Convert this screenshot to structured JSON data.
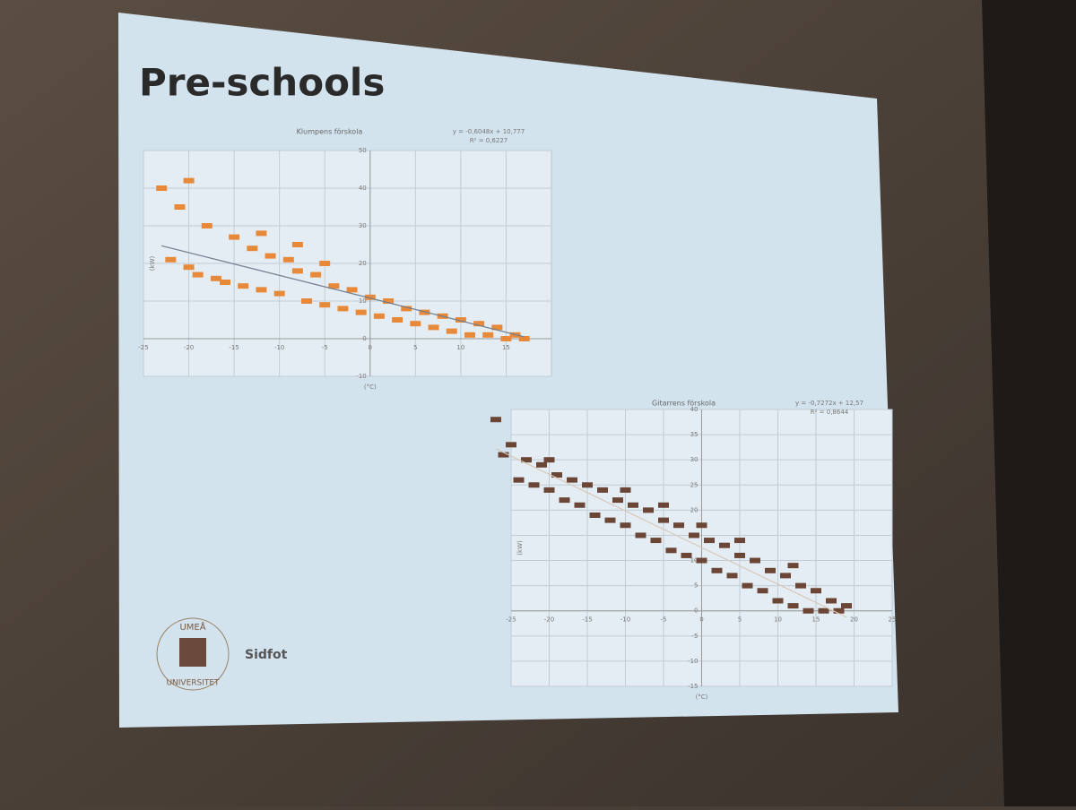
{
  "slide": {
    "title": "Pre-schools",
    "footer": "Sidfot",
    "logo_top": "UMEÅ",
    "logo_bottom": "UNIVERSITET"
  },
  "chart_data": [
    {
      "type": "scatter",
      "title": "Klumpens förskola",
      "equation": "y = -0,6048x + 10,777",
      "r2": "R² = 0,6227",
      "trendline": {
        "slope": -0.6048,
        "intercept": 10.777
      },
      "x_label": "(°C)",
      "y_label": "(kW)",
      "color": "#e8893a",
      "line_color": "#6f7d8c",
      "xlim": [
        -25,
        20
      ],
      "ylim": [
        -10,
        50
      ],
      "xticks": [
        -25,
        -20,
        -15,
        -10,
        -5,
        0,
        5,
        10,
        15
      ],
      "yticks": [
        -10,
        0,
        10,
        20,
        30,
        40,
        50
      ],
      "grid": true,
      "x": [
        -22,
        -21,
        -20,
        -19,
        -18,
        -17,
        -16,
        -15,
        -14,
        -13,
        -12,
        -11,
        -10,
        -9,
        -8,
        -7,
        -6,
        -5,
        -4,
        -3,
        -2,
        -1,
        0,
        1,
        2,
        3,
        4,
        5,
        6,
        7,
        8,
        9,
        10,
        11,
        12,
        13,
        14,
        15,
        16,
        17,
        -23,
        -20,
        -12,
        -8,
        -5
      ],
      "values": [
        21,
        35,
        19,
        17,
        30,
        16,
        15,
        27,
        14,
        24,
        13,
        22,
        12,
        21,
        18,
        10,
        17,
        9,
        14,
        8,
        13,
        7,
        11,
        6,
        10,
        5,
        8,
        4,
        7,
        3,
        6,
        2,
        5,
        1,
        4,
        1,
        3,
        0,
        1,
        0,
        40,
        42,
        28,
        25,
        20
      ]
    },
    {
      "type": "scatter",
      "title": "Gitarrens förskola",
      "equation": "y = -0,7272x + 12,57",
      "r2": "R² = 0,8644",
      "trendline": {
        "slope": -0.7272,
        "intercept": 12.57
      },
      "x_label": "(°C)",
      "y_label": "(kW)",
      "color": "#6b4636",
      "line_color": "#d8c8b8",
      "xlim": [
        -25,
        25
      ],
      "ylim": [
        -15,
        40
      ],
      "xticks": [
        -25,
        -20,
        -15,
        -10,
        -5,
        0,
        5,
        10,
        15,
        20,
        25
      ],
      "yticks": [
        -15,
        -10,
        -5,
        0,
        5,
        10,
        15,
        20,
        25,
        30,
        35,
        40
      ],
      "grid": true,
      "x": [
        -26,
        -25,
        -24,
        -23,
        -22,
        -21,
        -20,
        -19,
        -18,
        -17,
        -16,
        -15,
        -14,
        -13,
        -12,
        -11,
        -10,
        -9,
        -8,
        -7,
        -6,
        -5,
        -4,
        -3,
        -2,
        -1,
        0,
        1,
        2,
        3,
        4,
        5,
        6,
        7,
        8,
        9,
        10,
        11,
        12,
        13,
        14,
        15,
        16,
        17,
        18,
        19,
        -27,
        -20,
        -10,
        -5,
        0,
        5,
        12
      ],
      "values": [
        31,
        33,
        26,
        30,
        25,
        29,
        24,
        27,
        22,
        26,
        21,
        25,
        19,
        24,
        18,
        22,
        17,
        21,
        15,
        20,
        14,
        18,
        12,
        17,
        11,
        15,
        10,
        14,
        8,
        13,
        7,
        11,
        5,
        10,
        4,
        8,
        2,
        7,
        1,
        5,
        0,
        4,
        0,
        2,
        0,
        1,
        38,
        30,
        24,
        21,
        17,
        14,
        9
      ]
    }
  ]
}
